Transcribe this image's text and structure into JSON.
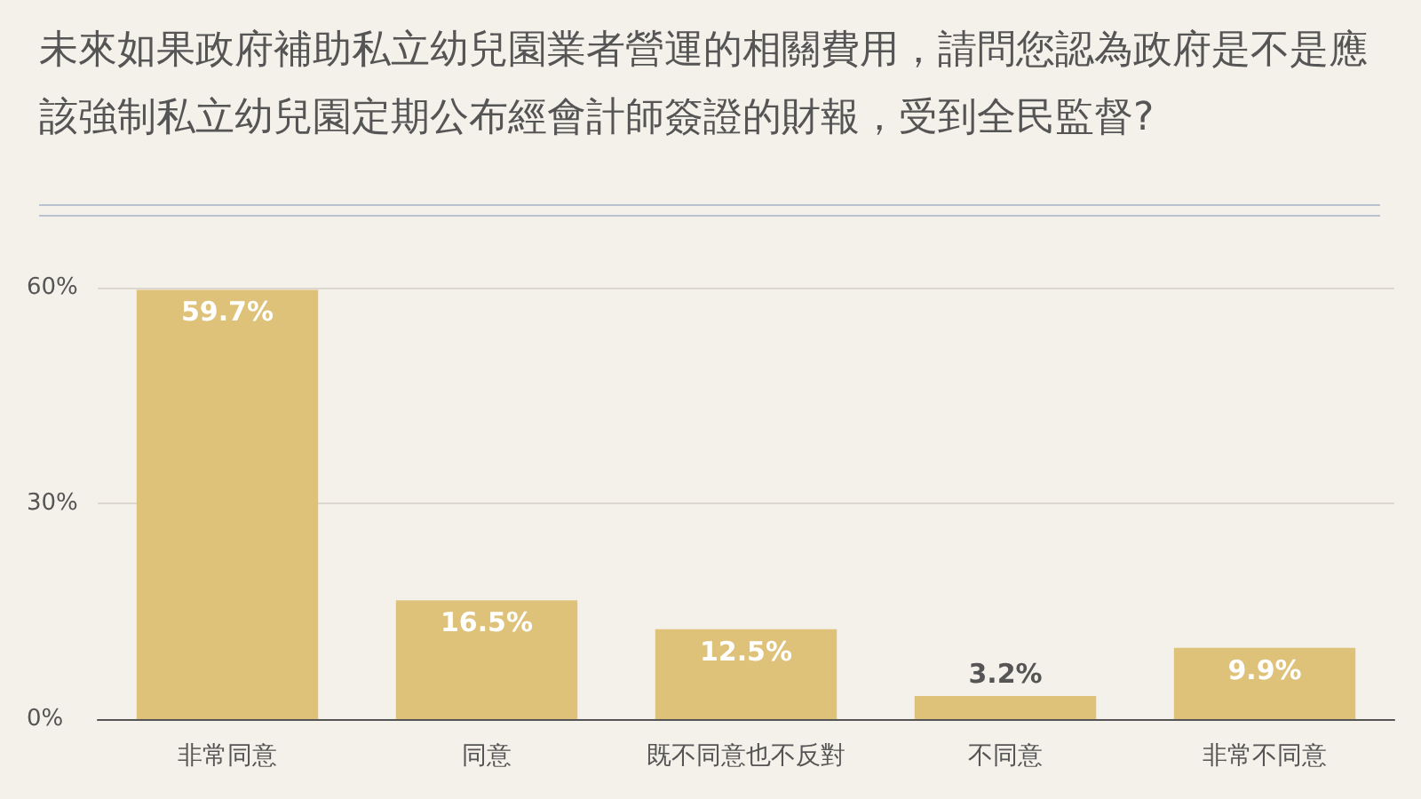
{
  "chart_data": {
    "type": "bar",
    "title": "未來如果政府補助私立幼兒園業者營運的相關費用，請問您認為政府是不是應該強制私立幼兒園定期公布經會計師簽證的財報，受到全民監督?",
    "categories": [
      "非常同意",
      "同意",
      "既不同意也不反對",
      "不同意",
      "非常不同意"
    ],
    "values": [
      59.7,
      16.5,
      12.5,
      3.2,
      9.9
    ],
    "value_labels": [
      "59.7%",
      "16.5%",
      "12.5%",
      "3.2%",
      "9.9%"
    ],
    "color": "#dfc27a",
    "ylim": [
      0,
      60
    ],
    "yticks": [
      {
        "value": 0,
        "label": "0%"
      },
      {
        "value": 30,
        "label": "30%"
      },
      {
        "value": 60,
        "label": "60%"
      }
    ],
    "grid": "y"
  }
}
